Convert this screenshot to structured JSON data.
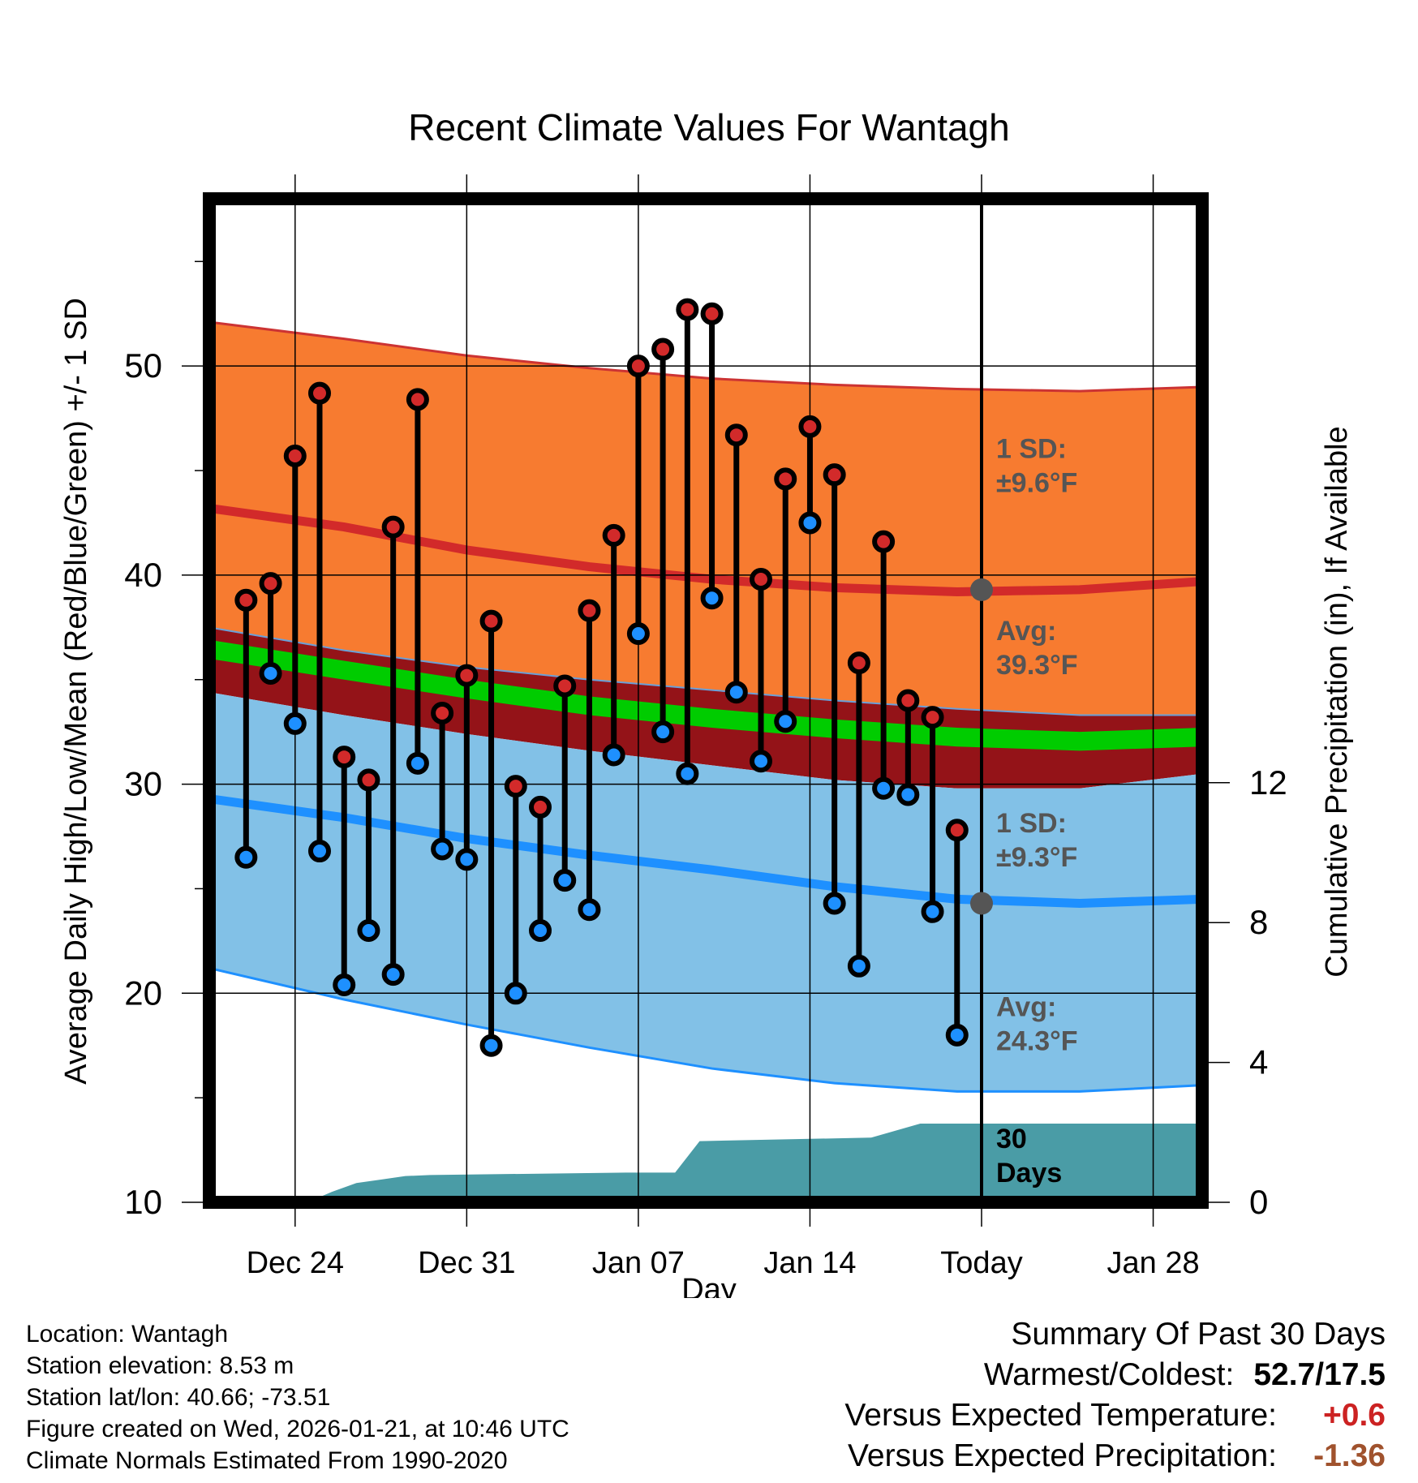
{
  "chart_data": {
    "type": "line",
    "title": "Recent Climate Values For Wantagh",
    "xlabel": "Day",
    "ylabel": "Average Daily High/Low/Mean (Red/Blue/Green) +/- 1 SD",
    "y2label": "Cumulative Precipitation (in), If Available",
    "ylim": [
      10,
      58
    ],
    "y2lim": [
      0,
      28.7
    ],
    "xlim": [
      -0.5,
      40
    ],
    "x_ticks": [
      {
        "x": 3,
        "label": "Dec 24"
      },
      {
        "x": 10,
        "label": "Dec 31"
      },
      {
        "x": 17,
        "label": "Jan 07"
      },
      {
        "x": 24,
        "label": "Jan 14"
      },
      {
        "x": 31,
        "label": "Today"
      },
      {
        "x": 38,
        "label": "Jan 28"
      }
    ],
    "y_ticks": [
      10,
      20,
      30,
      40,
      50
    ],
    "y2_ticks": [
      0,
      4,
      8,
      12
    ],
    "today_x": 31,
    "normals": {
      "x": [
        -0.5,
        5,
        10,
        15,
        20,
        25,
        30,
        35,
        40
      ],
      "high_upper": [
        52.1,
        51.3,
        50.5,
        49.9,
        49.4,
        49.1,
        48.9,
        48.8,
        49.0
      ],
      "high_avg": [
        43.2,
        42.3,
        41.2,
        40.4,
        39.8,
        39.4,
        39.2,
        39.3,
        39.7
      ],
      "high_lower": [
        37.5,
        36.4,
        35.6,
        35.0,
        34.5,
        34.0,
        33.6,
        33.3,
        33.3
      ],
      "mean_upper": [
        36.9,
        35.9,
        35.0,
        34.2,
        33.6,
        33.1,
        32.7,
        32.5,
        32.7
      ],
      "mean_lower": [
        36.0,
        35.0,
        34.1,
        33.3,
        32.7,
        32.2,
        31.8,
        31.6,
        31.8
      ],
      "low_upper": [
        34.4,
        33.3,
        32.4,
        31.6,
        30.9,
        30.2,
        29.8,
        29.8,
        30.5
      ],
      "low_avg": [
        29.3,
        28.4,
        27.4,
        26.6,
        25.9,
        25.1,
        24.5,
        24.3,
        24.5
      ],
      "low_lower": [
        21.2,
        19.7,
        18.5,
        17.4,
        16.4,
        15.7,
        15.3,
        15.3,
        15.6
      ]
    },
    "series": [
      {
        "name": "Daily High",
        "color": "#d22a2a",
        "values": [
          38.8,
          39.6,
          45.7,
          48.7,
          31.3,
          30.2,
          42.3,
          48.4,
          33.4,
          35.2,
          37.8,
          29.9,
          28.9,
          34.7,
          38.3,
          41.9,
          50.0,
          50.8,
          52.7,
          52.5,
          46.7,
          39.8,
          44.6,
          47.1,
          44.8,
          35.8,
          41.6,
          34.0,
          33.2,
          27.8
        ]
      },
      {
        "name": "Daily Low",
        "color": "#1e90ff",
        "values": [
          26.5,
          35.3,
          32.9,
          26.8,
          20.4,
          23.0,
          20.9,
          31.0,
          26.9,
          26.4,
          17.5,
          20.0,
          23.0,
          25.4,
          24.0,
          31.4,
          37.2,
          32.5,
          30.5,
          38.9,
          34.4,
          31.1,
          33.0,
          42.5,
          24.3,
          21.3,
          29.8,
          29.5,
          23.9,
          18.0
        ]
      }
    ],
    "day_x": [
      1,
      2,
      3,
      4,
      5,
      6,
      7,
      8,
      9,
      10,
      11,
      12,
      13,
      14,
      15,
      16,
      17,
      18,
      19,
      20,
      21,
      22,
      23,
      24,
      25,
      26,
      27,
      28,
      29,
      30
    ],
    "precipitation": {
      "x": [
        -0.5,
        1.5,
        2.5,
        3.5,
        4.5,
        5.5,
        6.5,
        7.5,
        8.5,
        16.5,
        18.5,
        19.5,
        26.5,
        27.5,
        28.5,
        40
      ],
      "values": [
        0,
        0,
        0,
        0,
        0.3,
        0.55,
        0.65,
        0.75,
        0.78,
        0.85,
        0.85,
        1.75,
        1.85,
        2.05,
        2.25,
        2.25
      ],
      "color": "#4a9ca6"
    },
    "annotations": {
      "high_sd": [
        "1 SD:",
        "±9.6°F"
      ],
      "high_avg": [
        "Avg:",
        "39.3°F"
      ],
      "low_sd": [
        "1 SD:",
        "±9.3°F"
      ],
      "low_avg": [
        "Avg:",
        "24.3°F"
      ],
      "days": [
        "30",
        "Days"
      ]
    },
    "colors": {
      "high_band": "#f77b30",
      "high_line": "#d22a2a",
      "high_edge": "#cc3333",
      "mean_band": "#941318",
      "mean_line": "#00cc00",
      "low_band": "#82c1e7",
      "low_line": "#1e90ff",
      "annotation_text": "#555555",
      "avg_dot": "#555555"
    }
  },
  "footer": {
    "lines": [
      "Location: Wantagh",
      "Station elevation: 8.53 m",
      "Station lat/lon: 40.66; -73.51",
      "Figure created on Wed, 2026-01-21, at 10:46 UTC",
      "Climate Normals Estimated From 1990-2020"
    ]
  },
  "summary": {
    "heading": "Summary Of Past 30 Days",
    "warmest_coldest_label": "Warmest/Coldest:",
    "warmest_coldest_value": "52.7/17.5",
    "temp_label": "Versus Expected Temperature:",
    "temp_value": "+0.6",
    "temp_color": "#cc2222",
    "precip_label": "Versus Expected Precipitation:",
    "precip_value": "-1.36",
    "precip_color": "#a0522d"
  }
}
